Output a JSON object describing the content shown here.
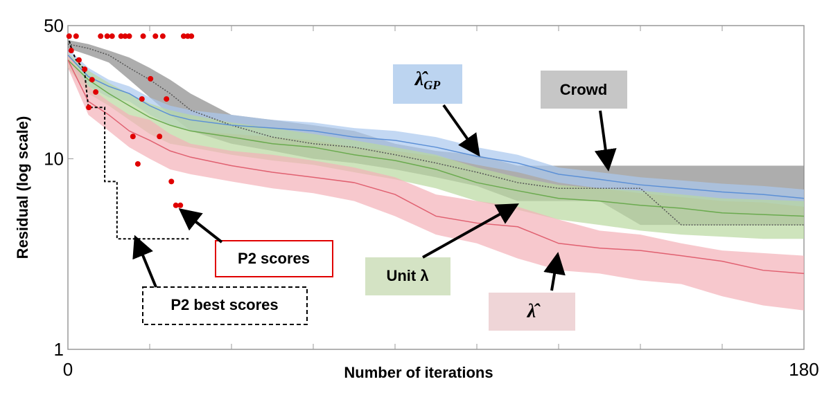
{
  "chart_data": {
    "type": "line",
    "xlabel": "Number of iterations",
    "ylabel": "Residual (log scale)",
    "xlim": [
      0,
      180
    ],
    "ylim": [
      1,
      50
    ],
    "log_y": true,
    "xticks": [
      0,
      180
    ],
    "xminorticks": [
      20,
      40,
      60,
      80,
      100,
      120,
      140,
      160
    ],
    "yticks": [
      1,
      10,
      50
    ],
    "x": [
      0,
      5,
      10,
      15,
      20,
      25,
      30,
      40,
      50,
      60,
      70,
      80,
      90,
      100,
      110,
      120,
      130,
      140,
      150,
      160,
      170,
      180
    ],
    "series": [
      {
        "name": "Crowd",
        "color": "#555555",
        "band_color": "#8a8a8a",
        "dash": true,
        "values": [
          40,
          38,
          35,
          30,
          26,
          22,
          18,
          15,
          13,
          12,
          11.5,
          10.5,
          9.5,
          8.5,
          7.5,
          7,
          7,
          7,
          4.5,
          4.5,
          4.5,
          4.5
        ],
        "upper": [
          42,
          40,
          37,
          34,
          30,
          26,
          22,
          17,
          16,
          15,
          14,
          12,
          11,
          10.5,
          9.2,
          9.2,
          9.2,
          9.2,
          9.2,
          9.2,
          9.2,
          9.2
        ],
        "lower": [
          38,
          35,
          32,
          26,
          21,
          17,
          14,
          12,
          11,
          10,
          9.5,
          8.8,
          8,
          7.2,
          6,
          6,
          6,
          4.5,
          4.5,
          4.5,
          4.5,
          4.5
        ]
      },
      {
        "name": "λ̂",
        "name_sub": "GP",
        "color": "#5b8fd6",
        "band_color": "#a9c8ee",
        "values": [
          35,
          27,
          24,
          22,
          19,
          17,
          16,
          15,
          14.5,
          14,
          13,
          12.5,
          11.5,
          10.3,
          9.5,
          8.3,
          7.8,
          7.3,
          7,
          6.7,
          6.5,
          6.2
        ],
        "upper": [
          38,
          30,
          26,
          24,
          21,
          19,
          18,
          17,
          16,
          15.5,
          14.5,
          14,
          13,
          11.5,
          10.5,
          9,
          8.5,
          8,
          7.7,
          7.4,
          7.2,
          6.9
        ],
        "lower": [
          32,
          24,
          21,
          20,
          17,
          15,
          14,
          13.5,
          13,
          12.5,
          11.5,
          11,
          10.3,
          9.3,
          8.5,
          7.5,
          7,
          6.6,
          6.3,
          6,
          5.9,
          5.6
        ]
      },
      {
        "name": "Unit λ",
        "color": "#6aaa4e",
        "band_color": "#b9d8a0",
        "values": [
          33,
          26,
          22,
          19,
          16.5,
          15,
          14,
          13,
          12,
          11.5,
          10.5,
          9.8,
          8.8,
          7.5,
          6.8,
          6.2,
          6,
          5.7,
          5.5,
          5.2,
          5.1,
          5.0
        ],
        "upper": [
          36,
          29,
          25,
          22,
          19.5,
          18,
          17,
          15.5,
          14.5,
          13.5,
          12.5,
          11.5,
          10.5,
          9,
          8,
          7.3,
          7,
          6.8,
          6.5,
          6.2,
          6.1,
          6
        ],
        "lower": [
          30,
          22,
          19,
          16,
          13.5,
          12,
          11.5,
          10.5,
          9.8,
          9.3,
          8.5,
          7.8,
          7,
          6,
          5.4,
          4.8,
          4.5,
          4.2,
          4,
          3.9,
          3.8,
          3.8
        ]
      },
      {
        "name": "λ̂",
        "color": "#e06070",
        "band_color": "#f4b0b8",
        "values": [
          33,
          20,
          17,
          14,
          12.5,
          11,
          10.2,
          9.2,
          8.5,
          8,
          7.5,
          6.5,
          5,
          4.6,
          4.4,
          3.6,
          3.4,
          3.3,
          3.1,
          2.9,
          2.6,
          2.5
        ],
        "upper": [
          36,
          24,
          20,
          17,
          16,
          13.5,
          12,
          11,
          10.5,
          9.8,
          9,
          8,
          6.5,
          6,
          5.6,
          4.8,
          4.2,
          4,
          3.6,
          3.3,
          3.2,
          3.1
        ],
        "lower": [
          30,
          17,
          14,
          11.5,
          10,
          8.8,
          8.3,
          7.6,
          7,
          6.6,
          6,
          5,
          4,
          3.6,
          3,
          2.6,
          2.5,
          2.3,
          2.2,
          1.9,
          1.7,
          1.6
        ]
      }
    ],
    "scatter": {
      "name": "P2 scores",
      "color": "#e00000",
      "x": [
        0.3,
        2,
        8,
        9.6,
        10.8,
        13,
        14,
        15,
        18.4,
        21.4,
        23.2,
        28.3,
        29.3,
        30.2,
        0.8,
        2.7,
        4.1,
        5.9,
        5.1,
        6.8,
        18.1,
        20.2,
        24.1,
        15.9,
        17.1,
        22.4,
        25.3,
        26.4,
        27.5
      ],
      "values": [
        44,
        44,
        44,
        44,
        44,
        44,
        44,
        44,
        44,
        44,
        44,
        44,
        44,
        44,
        37,
        33,
        29.5,
        26,
        18.6,
        22.4,
        20.6,
        26.3,
        20.6,
        13.1,
        9.4,
        13.1,
        7.6,
        5.7,
        5.7
      ]
    },
    "best": {
      "name": "P2 best scores",
      "color": "#000000",
      "x": [
        0,
        1,
        2,
        4,
        5,
        9,
        9,
        12,
        12,
        29.5
      ],
      "values": [
        44,
        37,
        33,
        29.5,
        18.6,
        18.6,
        7.6,
        7.6,
        3.8,
        3.8
      ]
    }
  }
}
